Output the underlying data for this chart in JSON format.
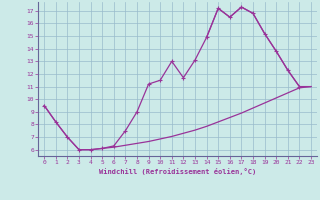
{
  "xlabel": "Windchill (Refroidissement éolien,°C)",
  "bg_color": "#cceae8",
  "grid_color": "#99bbcc",
  "line_color": "#993399",
  "xlim": [
    -0.5,
    23.5
  ],
  "ylim": [
    5.5,
    17.7
  ],
  "xticks": [
    0,
    1,
    2,
    3,
    4,
    5,
    6,
    7,
    8,
    9,
    10,
    11,
    12,
    13,
    14,
    15,
    16,
    17,
    18,
    19,
    20,
    21,
    22,
    23
  ],
  "yticks": [
    6,
    7,
    8,
    9,
    10,
    11,
    12,
    13,
    14,
    15,
    16,
    17
  ],
  "line_zigzag_x": [
    0,
    1,
    2,
    3,
    4,
    5,
    6,
    7,
    8,
    9,
    10,
    11,
    12,
    13,
    14,
    15,
    16,
    17,
    18,
    19,
    20,
    21,
    22
  ],
  "line_zigzag_y": [
    9.5,
    8.2,
    7.0,
    6.0,
    6.0,
    6.1,
    6.3,
    7.5,
    9.0,
    11.2,
    11.5,
    13.0,
    11.7,
    13.1,
    14.9,
    17.2,
    16.5,
    17.3,
    16.8,
    15.2,
    13.8,
    12.3,
    11.0
  ],
  "line_lower_x": [
    0,
    1,
    2,
    3,
    4,
    5,
    6,
    7,
    8,
    9,
    10,
    11,
    12,
    13,
    14,
    15,
    16,
    17,
    18,
    19,
    20,
    21,
    22,
    23
  ],
  "line_lower_y": [
    9.5,
    8.2,
    7.0,
    6.0,
    6.0,
    6.1,
    6.2,
    6.35,
    6.5,
    6.65,
    6.85,
    7.05,
    7.3,
    7.55,
    7.85,
    8.2,
    8.55,
    8.9,
    9.3,
    9.7,
    10.1,
    10.5,
    10.9,
    11.0
  ],
  "line_upper_x": [
    14,
    15,
    16,
    17,
    18,
    19,
    20,
    21,
    22,
    23
  ],
  "line_upper_y": [
    14.9,
    17.2,
    16.5,
    17.3,
    16.8,
    15.2,
    13.8,
    12.3,
    11.0,
    11.0
  ]
}
